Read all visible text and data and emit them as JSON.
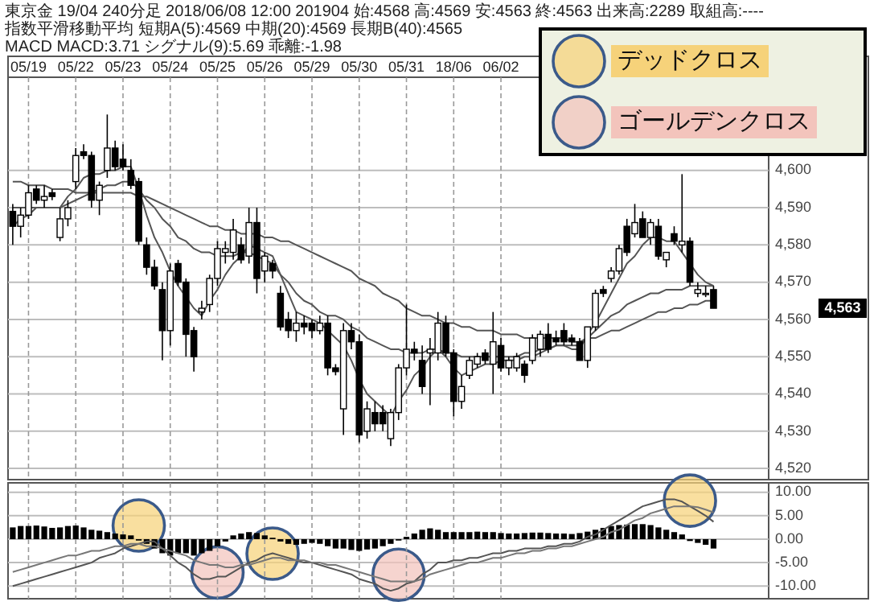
{
  "chart_data": [
    {
      "type": "candlestick",
      "title": "東京金 19/04 240分足 2018/06/08 12:00 201904 始:4568 高:4569 安:4563 終:4563 出来高:2289 取組高:----",
      "subtitle": "指数平滑移動平均 短期A(5):4569 中期(20):4569 長期B(40):4565",
      "categories": [
        null,
        null,
        "05/19",
        null,
        null,
        null,
        null,
        null,
        "05/22",
        null,
        null,
        null,
        null,
        null,
        "05/23",
        null,
        null,
        null,
        null,
        null,
        "05/24",
        null,
        null,
        null,
        null,
        null,
        "05/25",
        null,
        null,
        null,
        null,
        null,
        "05/26",
        null,
        null,
        null,
        null,
        null,
        "05/29",
        null,
        null,
        null,
        null,
        null,
        "05/30",
        null,
        null,
        null,
        null,
        null,
        "05/31",
        null,
        null,
        null,
        null,
        null,
        "18/06",
        null,
        null,
        null,
        null,
        null,
        "06/02",
        null,
        null,
        null,
        null,
        null,
        null,
        null,
        null,
        null,
        null,
        null,
        null,
        null,
        null,
        null,
        null,
        null,
        null,
        null,
        null,
        null,
        null,
        null,
        null,
        null,
        null,
        null
      ],
      "ohlc": [
        [
          4589,
          4591,
          4580,
          4585
        ],
        [
          4585,
          4590,
          4582,
          4588
        ],
        [
          4588,
          4596,
          4587,
          4594
        ],
        [
          4595,
          4596,
          4591,
          4592
        ],
        [
          4592,
          4596,
          4590,
          4593
        ],
        [
          4594,
          4595,
          4592,
          4593
        ],
        [
          4582,
          4590,
          4581,
          4587
        ],
        [
          4587,
          4592,
          4585,
          4590
        ],
        [
          4597,
          4606,
          4595,
          4604
        ],
        [
          4605,
          4607,
          4603,
          4604
        ],
        [
          4604,
          4605,
          4590,
          4592
        ],
        [
          4592,
          4597,
          4588,
          4596
        ],
        [
          4600,
          4615,
          4598,
          4606
        ],
        [
          4606,
          4608,
          4600,
          4601
        ],
        [
          4603,
          4607,
          4600,
          4601
        ],
        [
          4600,
          4603,
          4595,
          4596
        ],
        [
          4597,
          4598,
          4580,
          4581
        ],
        [
          4580,
          4582,
          4572,
          4574
        ],
        [
          4574,
          4576,
          4568,
          4569
        ],
        [
          4568,
          4570,
          4549,
          4557
        ],
        [
          4557,
          4575,
          4553,
          4573
        ],
        [
          4575,
          4576,
          4569,
          4570
        ],
        [
          4570,
          4571,
          4550,
          4556
        ],
        [
          4557,
          4558,
          4546,
          4550
        ],
        [
          4562,
          4565,
          4560,
          4563
        ],
        [
          4564,
          4572,
          4562,
          4571
        ],
        [
          4571,
          4581,
          4569,
          4579
        ],
        [
          4578,
          4581,
          4575,
          4579
        ],
        [
          4578,
          4587,
          4576,
          4584
        ],
        [
          4580,
          4582,
          4575,
          4576
        ],
        [
          4577,
          4590,
          4575,
          4586
        ],
        [
          4586,
          4590,
          4567,
          4571
        ],
        [
          4573,
          4578,
          4570,
          4577
        ],
        [
          4575,
          4576,
          4571,
          4573
        ],
        [
          4567,
          4569,
          4557,
          4558
        ],
        [
          4560,
          4562,
          4555,
          4557
        ],
        [
          4557,
          4562,
          4554,
          4559
        ],
        [
          4559,
          4561,
          4556,
          4558
        ],
        [
          4559,
          4560,
          4555,
          4557
        ],
        [
          4557,
          4561,
          4556,
          4559
        ],
        [
          4559,
          4561,
          4545,
          4547
        ],
        [
          4547,
          4548,
          4545,
          4546
        ],
        [
          4536,
          4559,
          4529,
          4557
        ],
        [
          4557,
          4559,
          4552,
          4554
        ],
        [
          4554,
          4556,
          4527,
          4529
        ],
        [
          4530,
          4538,
          4528,
          4536
        ],
        [
          4535,
          4538,
          4530,
          4532
        ],
        [
          4535,
          4537,
          4530,
          4532
        ],
        [
          4528,
          4536,
          4526,
          4535
        ],
        [
          4535,
          4548,
          4533,
          4547
        ],
        [
          4547,
          4564,
          4545,
          4552
        ],
        [
          4552,
          4554,
          4549,
          4551
        ],
        [
          4549,
          4553,
          4540,
          4542
        ],
        [
          4551,
          4555,
          4537,
          4552
        ],
        [
          4551,
          4562,
          4549,
          4559
        ],
        [
          4559,
          4561,
          4550,
          4551
        ],
        [
          4551,
          4552,
          4534,
          4538
        ],
        [
          4538,
          4545,
          4536,
          4542
        ],
        [
          4545,
          4550,
          4544,
          4549
        ],
        [
          4548,
          4551,
          4547,
          4550
        ],
        [
          4551,
          4552,
          4548,
          4549
        ],
        [
          4548,
          4562,
          4540,
          4554
        ],
        [
          4553,
          4555,
          4546,
          4547
        ],
        [
          4547,
          4550,
          4545,
          4549
        ],
        [
          4547,
          4551,
          4546,
          4550
        ],
        [
          4548,
          4549,
          4543,
          4545
        ],
        [
          4549,
          4556,
          4548,
          4555
        ],
        [
          4552,
          4557,
          4550,
          4556
        ],
        [
          4556,
          4559,
          4551,
          4552
        ],
        [
          4555,
          4557,
          4553,
          4554
        ],
        [
          4557,
          4559,
          4553,
          4554
        ],
        [
          4555,
          4556,
          4553,
          4554
        ],
        [
          4554,
          4555,
          4549,
          4549
        ],
        [
          4549,
          4558,
          4547,
          4558
        ],
        [
          4558,
          4568,
          4557,
          4567
        ],
        [
          4568,
          4569,
          4566,
          4567
        ],
        [
          4571,
          4574,
          4570,
          4573
        ],
        [
          4573,
          4580,
          4572,
          4579
        ],
        [
          4585,
          4587,
          4577,
          4578
        ],
        [
          4583,
          4591,
          4582,
          4586
        ],
        [
          4587,
          4589,
          4582,
          4582
        ],
        [
          4582,
          4587,
          4580,
          4586
        ],
        [
          4585,
          4587,
          4576,
          4577
        ],
        [
          4576,
          4578,
          4574,
          4578
        ],
        [
          4583,
          4585,
          4580,
          4581
        ],
        [
          4580,
          4599,
          4578,
          4581
        ],
        [
          4581,
          4582,
          4569,
          4570
        ],
        [
          4567,
          4570,
          4566,
          4568
        ],
        [
          4567,
          4569,
          4566,
          4567
        ],
        [
          4568,
          4569,
          4563,
          4563
        ]
      ],
      "series": [
        {
          "type": "line",
          "color": "#555555",
          "values": [
            4585,
            4587,
            4588,
            4590,
            4590,
            4590,
            4590,
            4593,
            4595,
            4598,
            4599,
            4599,
            4600,
            4600,
            4601,
            4601,
            4595,
            4588,
            4582,
            4578,
            4573,
            4569,
            4566,
            4563,
            4561,
            4565,
            4568,
            4572,
            4575,
            4577,
            4580,
            4579,
            4578,
            4577,
            4572,
            4567,
            4562,
            4561,
            4560,
            4559,
            4557,
            4555,
            4553,
            4549,
            4544,
            4540,
            4538,
            4536,
            4534,
            4538,
            4541,
            4545,
            4547,
            4550,
            4552,
            4550,
            4547,
            4545,
            4546,
            4547,
            4548,
            4548,
            4549,
            4549,
            4549,
            4550,
            4550,
            4551,
            4552,
            4553,
            4553,
            4552,
            4552,
            4556,
            4559,
            4563,
            4567,
            4571,
            4575,
            4577,
            4580,
            4582,
            4582,
            4581,
            4581,
            4578,
            4575,
            4572,
            4570,
            4569
          ]
        },
        {
          "type": "line",
          "color": "#555555",
          "values": [
            4590,
            4590,
            4590,
            4590,
            4590,
            4590,
            4590,
            4591,
            4592,
            4593,
            4594,
            4595,
            4596,
            4596,
            4597,
            4597,
            4595,
            4592,
            4590,
            4587,
            4585,
            4582,
            4581,
            4579,
            4578,
            4578,
            4577,
            4577,
            4577,
            4578,
            4578,
            4577,
            4576,
            4575,
            4572,
            4570,
            4567,
            4565,
            4564,
            4562,
            4561,
            4561,
            4560,
            4558,
            4557,
            4555,
            4554,
            4553,
            4552,
            4552,
            4551,
            4551,
            4551,
            4552,
            4552,
            4551,
            4551,
            4550,
            4550,
            4550,
            4550,
            4550,
            4550,
            4550,
            4550,
            4551,
            4551,
            4552,
            4552,
            4553,
            4553,
            4553,
            4553,
            4555,
            4557,
            4559,
            4561,
            4562,
            4564,
            4565,
            4566,
            4567,
            4567,
            4568,
            4568,
            4568,
            4569,
            4569,
            4569,
            4569
          ]
        },
        {
          "type": "line",
          "color": "#555555",
          "values": [
            4597,
            4597,
            4596,
            4596,
            4596,
            4595,
            4595,
            4595,
            4594,
            4594,
            4594,
            4594,
            4594,
            4594,
            4594,
            4594,
            4593,
            4593,
            4592,
            4591,
            4590,
            4589,
            4588,
            4587,
            4586,
            4585,
            4585,
            4584,
            4584,
            4583,
            4583,
            4583,
            4582,
            4582,
            4581,
            4581,
            4580,
            4579,
            4578,
            4577,
            4576,
            4575,
            4574,
            4573,
            4571,
            4570,
            4569,
            4567,
            4566,
            4565,
            4563,
            4562,
            4561,
            4561,
            4560,
            4559,
            4559,
            4558,
            4558,
            4557,
            4557,
            4557,
            4556,
            4556,
            4556,
            4555,
            4555,
            4555,
            4555,
            4555,
            4555,
            4554,
            4554,
            4555,
            4555,
            4556,
            4557,
            4557,
            4558,
            4559,
            4560,
            4561,
            4562,
            4562,
            4563,
            4563,
            4564,
            4564,
            4565,
            4565
          ]
        }
      ],
      "ylim": [
        4517,
        4625
      ],
      "yticks": [
        {
          "value": 4520,
          "label": "4,520"
        },
        {
          "value": 4530,
          "label": "4,530"
        },
        {
          "value": 4540,
          "label": "4,540"
        },
        {
          "value": 4550,
          "label": "4,550"
        },
        {
          "value": 4560,
          "label": "4,560"
        },
        {
          "value": 4570,
          "label": "4,570"
        },
        {
          "value": 4580,
          "label": "4,580"
        },
        {
          "value": 4590,
          "label": "4,590"
        },
        {
          "value": 4600,
          "label": "4,600"
        }
      ],
      "grid": true,
      "annotations": [
        "MACD MACD:3.71 シグナル(9):5.69 乖離:-1.98",
        "4,563"
      ]
    },
    {
      "type": "bar",
      "categories": [
        null,
        null,
        null,
        null,
        null,
        null,
        null,
        null,
        null,
        null,
        null,
        null,
        null,
        null,
        null,
        null,
        null,
        null,
        null,
        null,
        null,
        null,
        null,
        null,
        null,
        null,
        null,
        null,
        null,
        null,
        null,
        null,
        null,
        null,
        null,
        null,
        null,
        null,
        null,
        null,
        null,
        null,
        null,
        null,
        null,
        null,
        null,
        null,
        null,
        null,
        null,
        null,
        null,
        null,
        null,
        null,
        null,
        null,
        null,
        null,
        null,
        null,
        null,
        null,
        null,
        null,
        null,
        null,
        null,
        null,
        null,
        null,
        null,
        null,
        null,
        null,
        null,
        null,
        null,
        null,
        null,
        null,
        null,
        null,
        null,
        null,
        null,
        null,
        null,
        null
      ],
      "series": [
        {
          "type": "bar",
          "color": "#000000",
          "values": [
            2.5,
            2.8,
            2.8,
            2.9,
            2.7,
            2.4,
            2.5,
            2.8,
            2.9,
            2.5,
            2,
            1.8,
            1.5,
            1.2,
            1,
            0.8,
            -0.3,
            -1,
            -2,
            -3,
            -3.5,
            -3,
            -3,
            -3.5,
            -3,
            -2.5,
            -1.5,
            -0.5,
            0.8,
            1.2,
            1.5,
            1.3,
            0.8,
            0.3,
            -0.5,
            -1,
            -1.2,
            -1,
            -0.8,
            -1,
            -1.5,
            -2,
            -2,
            -2.3,
            -2.5,
            -2.2,
            -2,
            -1.5,
            -1,
            -0.3,
            0.5,
            1.2,
            2,
            2.3,
            2,
            1.5,
            1.5,
            1.5,
            1.5,
            1.6,
            1.5,
            1.5,
            1.3,
            1.2,
            1.2,
            1.3,
            1.4,
            1.4,
            1.3,
            1.2,
            1.2,
            1.1,
            1.3,
            1.6,
            2,
            2.4,
            2.8,
            3,
            3.1,
            3.2,
            3.2,
            3,
            2.5,
            2,
            1.5,
            1,
            -0.4,
            -0.8,
            -1.2,
            -2
          ]
        },
        {
          "type": "line",
          "color": "#555555",
          "values": [
            -10,
            -9.5,
            -9,
            -8.5,
            -8,
            -7.5,
            -7,
            -6.5,
            -6,
            -5.5,
            -5,
            -4,
            -3.5,
            -3,
            -2,
            -1.5,
            -1,
            -0.5,
            -0.5,
            -2,
            -3.5,
            -5,
            -6,
            -7.5,
            -8.5,
            -8.5,
            -8,
            -8,
            -7,
            -6,
            -5,
            -4.5,
            -3.5,
            -3,
            -3.5,
            -4,
            -4.5,
            -5,
            -5,
            -5.5,
            -6,
            -6.5,
            -7,
            -7.5,
            -8.5,
            -9,
            -9.5,
            -10.5,
            -11,
            -10.5,
            -9.5,
            -9,
            -7.5,
            -6.5,
            -5,
            -5,
            -4.5,
            -4.5,
            -4,
            -4,
            -3.5,
            -3,
            -3,
            -2.5,
            -2.5,
            -2,
            -2,
            -2,
            -1.5,
            -1.5,
            -1,
            -1,
            -0.5,
            0.5,
            1,
            2,
            3,
            4,
            5,
            6,
            7,
            7.5,
            8,
            8.5,
            8.5,
            8,
            7,
            6,
            5,
            3.7
          ]
        },
        {
          "type": "line",
          "color": "#777777",
          "values": [
            -7,
            -6.5,
            -6,
            -5.5,
            -5,
            -4.5,
            -4,
            -3.5,
            -3.5,
            -3,
            -2.5,
            -2.5,
            -2,
            -1.5,
            -1.5,
            -1,
            -1,
            -1.5,
            -1.5,
            -2,
            -2.5,
            -3,
            -3.5,
            -4.5,
            -5,
            -5.5,
            -5.5,
            -6,
            -6,
            -5.5,
            -5.5,
            -5,
            -4.5,
            -4,
            -4,
            -4.5,
            -4.5,
            -4.5,
            -5,
            -5,
            -5.5,
            -5.5,
            -6,
            -6.5,
            -7,
            -7.5,
            -8,
            -8.5,
            -9,
            -9,
            -9,
            -9,
            -8.5,
            -7.5,
            -7,
            -6.5,
            -6,
            -5.5,
            -5,
            -5,
            -4.5,
            -4,
            -4,
            -3.5,
            -3,
            -3,
            -2.5,
            -2.5,
            -2,
            -2,
            -1.5,
            -1.5,
            -1,
            -0.5,
            0,
            0.5,
            1.5,
            2,
            3,
            4,
            4.5,
            5.5,
            6,
            6.5,
            7,
            7,
            7,
            6.8,
            6.3,
            5.7
          ]
        },
        {
          "type": "scatter",
          "name": "デッドクロス",
          "color": "#f6d27a",
          "marker": "circle",
          "values": [
            null,
            null,
            null,
            null,
            null,
            null,
            null,
            null,
            null,
            null,
            null,
            null,
            null,
            null,
            null,
            null,
            2.9,
            null,
            null,
            null,
            null,
            null,
            null,
            null,
            null,
            null,
            null,
            null,
            null,
            null,
            null,
            null,
            null,
            -3.1,
            null,
            null,
            null,
            null,
            null,
            null,
            null,
            null,
            null,
            null,
            null,
            null,
            null,
            null,
            null,
            null,
            null,
            null,
            null,
            null,
            null,
            null,
            null,
            null,
            null,
            null,
            null,
            null,
            null,
            null,
            null,
            null,
            null,
            null,
            null,
            null,
            null,
            null,
            null,
            null,
            null,
            null,
            null,
            null,
            null,
            null,
            null,
            null,
            null,
            null,
            null,
            null,
            8.2,
            null,
            null,
            null
          ]
        },
        {
          "type": "scatter",
          "name": "ゴールデンクロス",
          "color": "#f3c4bc",
          "marker": "circle",
          "values": [
            null,
            null,
            null,
            null,
            null,
            null,
            null,
            null,
            null,
            null,
            null,
            null,
            null,
            null,
            null,
            null,
            null,
            null,
            null,
            null,
            null,
            null,
            null,
            null,
            null,
            null,
            -7.1,
            null,
            null,
            null,
            null,
            null,
            null,
            null,
            null,
            null,
            null,
            null,
            null,
            null,
            null,
            null,
            null,
            null,
            null,
            null,
            null,
            null,
            null,
            -7.6,
            null,
            null,
            null,
            null,
            null,
            null,
            null,
            null,
            null,
            null,
            null,
            null,
            null,
            null,
            null,
            null,
            null,
            null,
            null,
            null,
            null,
            null,
            null,
            null,
            null,
            null,
            null,
            null,
            null,
            null,
            null,
            null,
            null,
            null,
            null,
            null,
            null,
            null,
            null,
            null
          ]
        }
      ],
      "ylim": [
        -12.7,
        12
      ],
      "yticks": [
        {
          "value": -10,
          "label": "-10.00"
        },
        {
          "value": -5,
          "label": "-5.00"
        },
        {
          "value": 0,
          "label": "0.00"
        },
        {
          "value": 5,
          "label": "5.00"
        },
        {
          "value": 10,
          "label": "10.00"
        }
      ],
      "grid": true,
      "legend": "top right",
      "tick_labels": "y"
    }
  ]
}
